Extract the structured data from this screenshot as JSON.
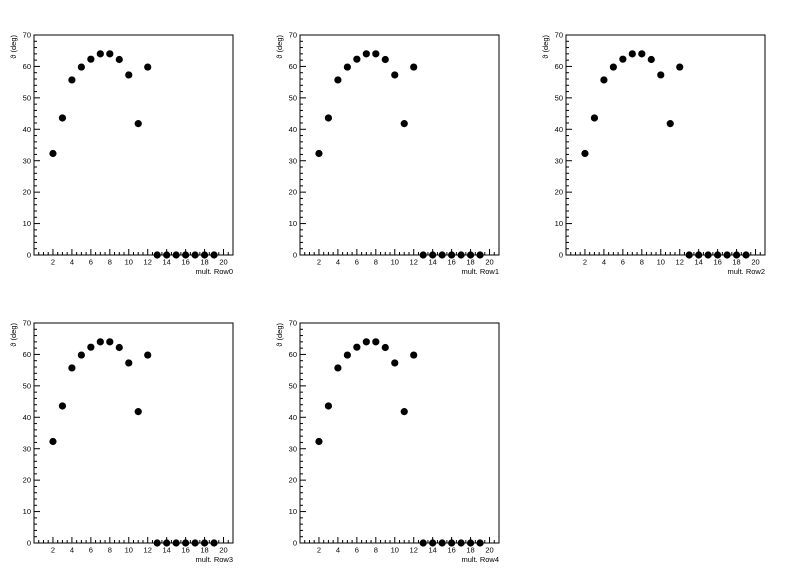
{
  "chart_data": [
    {
      "type": "scatter",
      "xlabel": "mult. Row0",
      "ylabel": "ϑ (deg)",
      "xlim": [
        0,
        21
      ],
      "ylim": [
        0,
        70
      ],
      "xticks": [
        2,
        4,
        6,
        8,
        10,
        12,
        14,
        16,
        18,
        20
      ],
      "yticks": [
        0,
        10,
        20,
        30,
        40,
        50,
        60,
        70
      ],
      "x": [
        2,
        3,
        4,
        5,
        6,
        7,
        8,
        9,
        10,
        11,
        12,
        13,
        14,
        15,
        16,
        17,
        18,
        19
      ],
      "y": [
        32.3,
        43.6,
        55.7,
        59.8,
        62.3,
        64.0,
        64.0,
        62.2,
        57.3,
        41.8,
        59.8,
        0,
        0,
        0,
        0,
        0,
        0,
        0
      ]
    },
    {
      "type": "scatter",
      "xlabel": "mult. Row1",
      "ylabel": "ϑ (deg)",
      "xlim": [
        0,
        21
      ],
      "ylim": [
        0,
        70
      ],
      "xticks": [
        2,
        4,
        6,
        8,
        10,
        12,
        14,
        16,
        18,
        20
      ],
      "yticks": [
        0,
        10,
        20,
        30,
        40,
        50,
        60,
        70
      ],
      "x": [
        2,
        3,
        4,
        5,
        6,
        7,
        8,
        9,
        10,
        11,
        12,
        13,
        14,
        15,
        16,
        17,
        18,
        19
      ],
      "y": [
        32.3,
        43.6,
        55.7,
        59.8,
        62.3,
        64.0,
        64.0,
        62.2,
        57.3,
        41.8,
        59.8,
        0,
        0,
        0,
        0,
        0,
        0,
        0
      ]
    },
    {
      "type": "scatter",
      "xlabel": "mult. Row2",
      "ylabel": "ϑ (deg)",
      "xlim": [
        0,
        21
      ],
      "ylim": [
        0,
        70
      ],
      "xticks": [
        2,
        4,
        6,
        8,
        10,
        12,
        14,
        16,
        18,
        20
      ],
      "yticks": [
        0,
        10,
        20,
        30,
        40,
        50,
        60,
        70
      ],
      "x": [
        2,
        3,
        4,
        5,
        6,
        7,
        8,
        9,
        10,
        11,
        12,
        13,
        14,
        15,
        16,
        17,
        18,
        19
      ],
      "y": [
        32.3,
        43.6,
        55.7,
        59.8,
        62.3,
        64.0,
        64.0,
        62.2,
        57.3,
        41.8,
        59.8,
        0,
        0,
        0,
        0,
        0,
        0,
        0
      ]
    },
    {
      "type": "scatter",
      "xlabel": "mult. Row3",
      "ylabel": "ϑ (deg)",
      "xlim": [
        0,
        21
      ],
      "ylim": [
        0,
        70
      ],
      "xticks": [
        2,
        4,
        6,
        8,
        10,
        12,
        14,
        16,
        18,
        20
      ],
      "yticks": [
        0,
        10,
        20,
        30,
        40,
        50,
        60,
        70
      ],
      "x": [
        2,
        3,
        4,
        5,
        6,
        7,
        8,
        9,
        10,
        11,
        12,
        13,
        14,
        15,
        16,
        17,
        18,
        19
      ],
      "y": [
        32.3,
        43.6,
        55.7,
        59.8,
        62.3,
        64.0,
        64.0,
        62.2,
        57.3,
        41.8,
        59.8,
        0,
        0,
        0,
        0,
        0,
        0,
        0
      ]
    },
    {
      "type": "scatter",
      "xlabel": "mult. Row4",
      "ylabel": "ϑ (deg)",
      "xlim": [
        0,
        21
      ],
      "ylim": [
        0,
        70
      ],
      "xticks": [
        2,
        4,
        6,
        8,
        10,
        12,
        14,
        16,
        18,
        20
      ],
      "yticks": [
        0,
        10,
        20,
        30,
        40,
        50,
        60,
        70
      ],
      "x": [
        2,
        3,
        4,
        5,
        6,
        7,
        8,
        9,
        10,
        11,
        12,
        13,
        14,
        15,
        16,
        17,
        18,
        19
      ],
      "y": [
        32.3,
        43.6,
        55.7,
        59.8,
        62.3,
        64.0,
        64.0,
        62.2,
        57.3,
        41.8,
        59.8,
        0,
        0,
        0,
        0,
        0,
        0,
        0
      ]
    }
  ]
}
